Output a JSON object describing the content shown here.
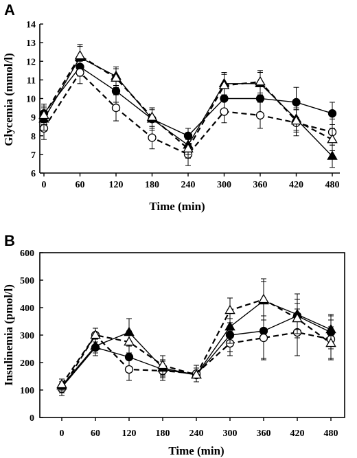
{
  "chart_data": [
    {
      "panel": "A",
      "type": "line",
      "title": "",
      "xlabel": "Time (min)",
      "ylabel": "Glycemia (mmol/l)",
      "x": [
        0,
        60,
        120,
        180,
        240,
        300,
        360,
        420,
        480
      ],
      "x_tick_labels": [
        "0",
        "60",
        "120",
        "180",
        "240",
        "300",
        "360",
        "420",
        "480"
      ],
      "y_ticks": [
        6,
        7,
        8,
        9,
        10,
        11,
        12,
        13,
        14
      ],
      "xlim": [
        0,
        480
      ],
      "ylim": [
        6,
        14
      ],
      "legend": "none",
      "grid": false,
      "series": [
        {
          "marker": "filled-circle",
          "line": "solid",
          "values": [
            9.2,
            11.7,
            10.4,
            8.9,
            8.0,
            10.0,
            10.0,
            9.8,
            9.2
          ],
          "errors": [
            0.5,
            0.5,
            0.6,
            0.6,
            0.4,
            0.7,
            0.8,
            0.8,
            0.6
          ]
        },
        {
          "marker": "open-circle",
          "line": "dashed",
          "values": [
            8.4,
            11.4,
            9.5,
            7.9,
            7.0,
            9.3,
            9.1,
            8.7,
            8.2
          ],
          "errors": [
            0.6,
            0.6,
            0.7,
            0.6,
            0.6,
            0.6,
            0.7,
            0.7,
            0.7
          ]
        },
        {
          "marker": "filled-triangle",
          "line": "solid",
          "values": [
            8.9,
            12.2,
            11.2,
            8.9,
            7.5,
            10.8,
            10.8,
            8.9,
            6.9
          ],
          "errors": [
            0.6,
            0.6,
            0.5,
            0.5,
            0.5,
            0.6,
            0.6,
            0.6,
            0.6
          ]
        },
        {
          "marker": "open-triangle",
          "line": "dashed",
          "values": [
            9.1,
            12.3,
            11.1,
            9.0,
            7.3,
            10.7,
            10.9,
            8.8,
            7.8
          ],
          "errors": [
            0.5,
            0.6,
            0.5,
            0.5,
            0.5,
            0.6,
            0.6,
            0.6,
            0.6
          ]
        }
      ]
    },
    {
      "panel": "B",
      "type": "line",
      "title": "",
      "xlabel": "Time (min)",
      "ylabel": "Insulinemia (pmol/l)",
      "x": [
        0,
        60,
        120,
        180,
        240,
        300,
        360,
        420,
        480
      ],
      "x_tick_labels": [
        "0",
        "60",
        "120",
        "180",
        "240",
        "300",
        "360",
        "420",
        "480"
      ],
      "y_ticks": [
        0,
        100,
        200,
        300,
        400,
        500,
        600
      ],
      "xlim": [
        0,
        480
      ],
      "ylim": [
        0,
        600
      ],
      "legend": "none",
      "grid": false,
      "series": [
        {
          "marker": "filled-circle",
          "line": "solid",
          "values": [
            110,
            255,
            220,
            175,
            155,
            300,
            315,
            370,
            310
          ],
          "errors": [
            30,
            30,
            45,
            30,
            25,
            60,
            100,
            80,
            60
          ]
        },
        {
          "marker": "open-circle",
          "line": "dashed",
          "values": [
            105,
            300,
            175,
            170,
            160,
            270,
            290,
            310,
            285
          ],
          "errors": [
            25,
            25,
            40,
            35,
            30,
            45,
            80,
            85,
            70
          ]
        },
        {
          "marker": "filled-triangle",
          "line": "solid",
          "values": [
            115,
            260,
            310,
            180,
            155,
            330,
            425,
            375,
            320
          ],
          "errors": [
            25,
            25,
            50,
            30,
            25,
            60,
            70,
            55,
            55
          ]
        },
        {
          "marker": "open-triangle",
          "line": "dashed",
          "values": [
            120,
            300,
            275,
            190,
            155,
            390,
            430,
            360,
            270
          ],
          "errors": [
            20,
            25,
            40,
            35,
            25,
            45,
            75,
            55,
            60
          ]
        }
      ]
    }
  ]
}
